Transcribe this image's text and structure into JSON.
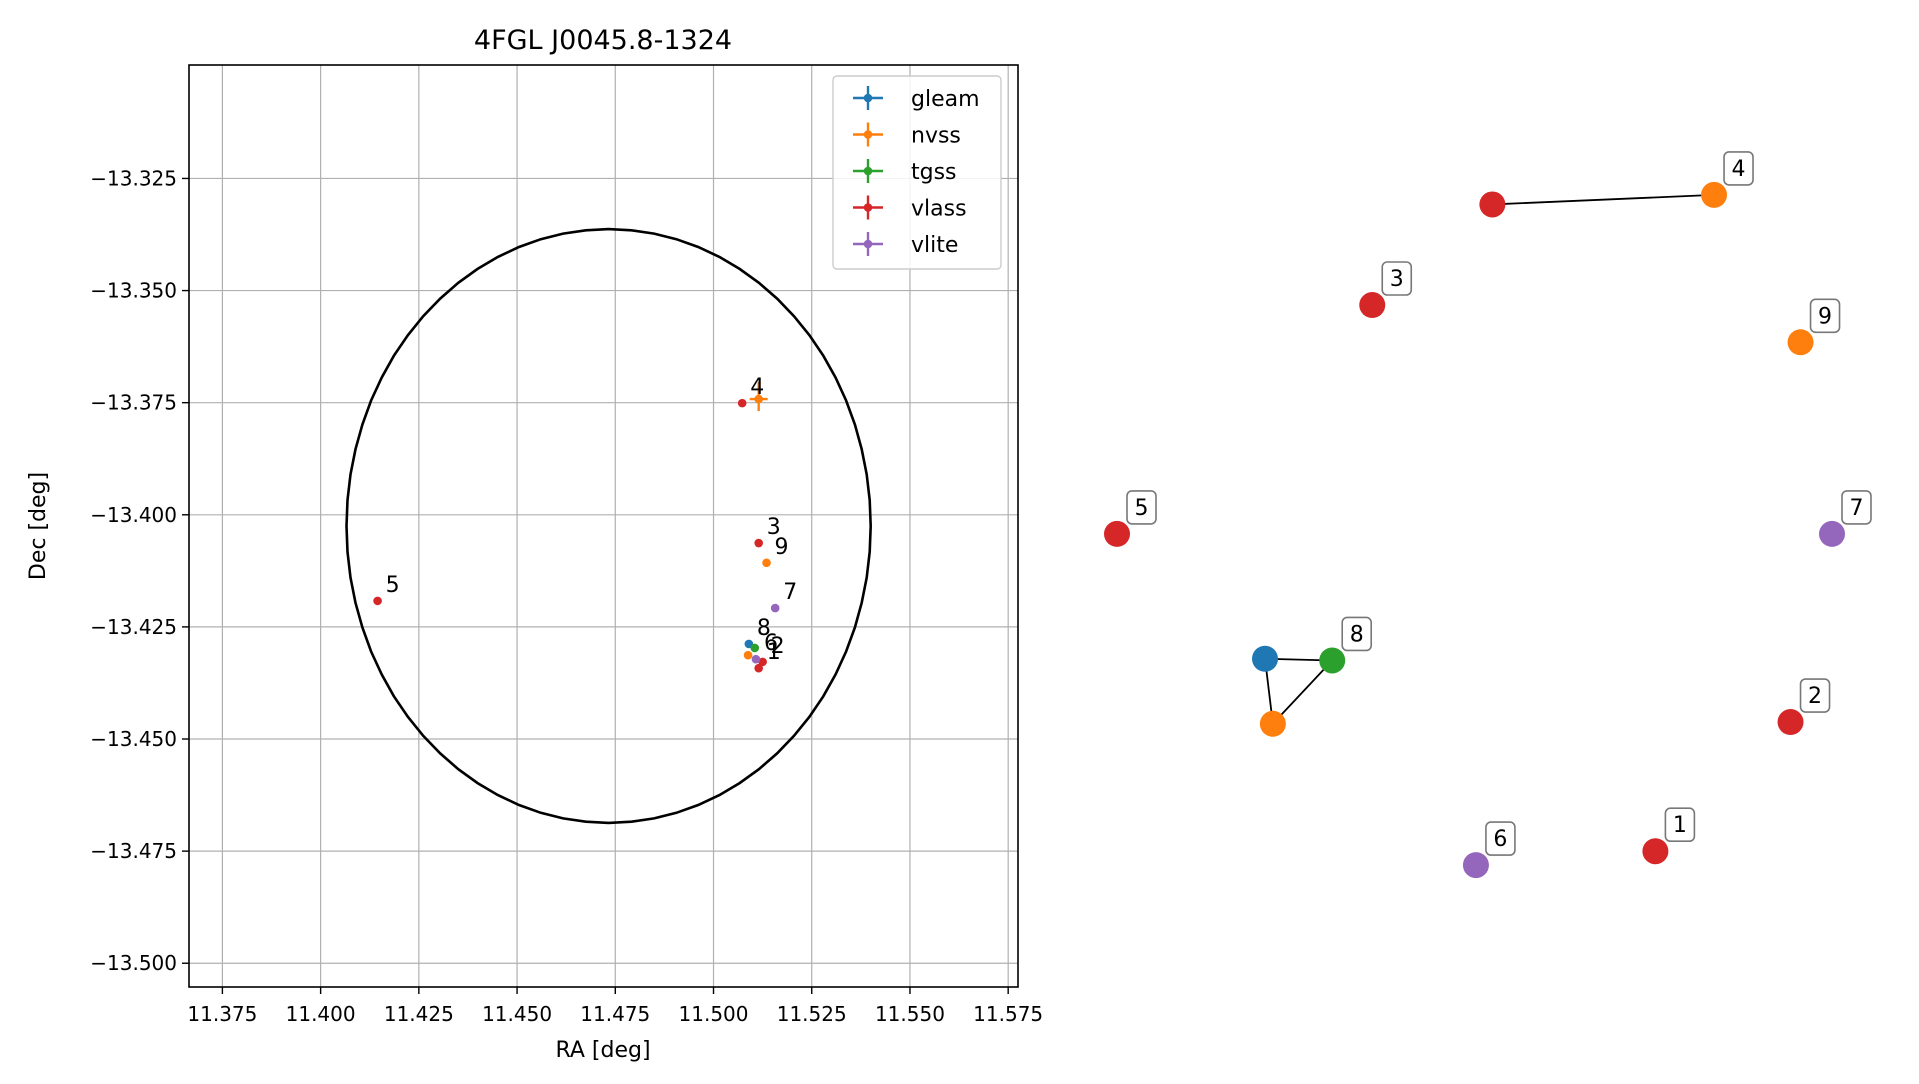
{
  "chart_data": [
    {
      "type": "scatter",
      "title": "4FGL J0045.8-1324",
      "xlabel": "RA [deg]",
      "ylabel": "Dec [deg]",
      "xlim": [
        11.3665,
        11.5775
      ],
      "ylim": [
        -13.5053,
        -13.2997
      ],
      "xticks": [
        "11.375",
        "11.400",
        "11.425",
        "11.450",
        "11.475",
        "11.500",
        "11.525",
        "11.550",
        "11.575"
      ],
      "xtick_values": [
        11.375,
        11.4,
        11.425,
        11.45,
        11.475,
        11.5,
        11.525,
        11.55,
        11.575
      ],
      "yticks": [
        "−13.325",
        "−13.350",
        "−13.375",
        "−13.400",
        "−13.425",
        "−13.450",
        "−13.475",
        "−13.500"
      ],
      "ytick_values": [
        -13.325,
        -13.35,
        -13.375,
        -13.4,
        -13.425,
        -13.45,
        -13.475,
        -13.5
      ],
      "grid": true,
      "legend_position": "top-right",
      "ellipse": {
        "center_ra": 11.4733,
        "center_dec": -13.4025,
        "semi_major_ra": 0.0667,
        "semi_minor_dec": 0.0662,
        "color": "#000000"
      },
      "series": [
        {
          "name": "gleam",
          "color": "#1f77b4",
          "points": [
            {
              "ra": 11.509,
              "dec": -13.4288,
              "label": ""
            }
          ]
        },
        {
          "name": "nvss",
          "color": "#ff7f0e",
          "points": [
            {
              "ra": 11.5115,
              "dec": -13.3742,
              "label": "",
              "error": true
            },
            {
              "ra": 11.5135,
              "dec": -13.4107,
              "label": ""
            },
            {
              "ra": 11.5088,
              "dec": -13.4313,
              "label": ""
            }
          ]
        },
        {
          "name": "tgss",
          "color": "#2ca02c",
          "points": [
            {
              "ra": 11.5105,
              "dec": -13.4297,
              "label": ""
            }
          ]
        },
        {
          "name": "vlass",
          "color": "#d62728",
          "points": [
            {
              "ra": 11.5073,
              "dec": -13.3751,
              "label": "4"
            },
            {
              "ra": 11.5115,
              "dec": -13.4063,
              "label": "3"
            },
            {
              "ra": 11.4145,
              "dec": -13.4192,
              "label": "5"
            },
            {
              "ra": 11.5125,
              "dec": -13.4328,
              "label": "2"
            },
            {
              "ra": 11.5115,
              "dec": -13.4342,
              "label": "1"
            }
          ]
        },
        {
          "name": "vlite",
          "color": "#9467bd",
          "points": [
            {
              "ra": 11.5157,
              "dec": -13.4208,
              "label": "7"
            },
            {
              "ra": 11.5108,
              "dec": -13.4322,
              "label": "6"
            }
          ]
        }
      ],
      "extra_labels": [
        {
          "text": "9",
          "ra": 11.5135,
          "dec": -13.4107
        },
        {
          "text": "8",
          "ra": 11.509,
          "dec": -13.4288
        }
      ]
    },
    {
      "type": "network",
      "nodes": [
        {
          "id": "4",
          "color": "#ff7f0e",
          "label": "4",
          "labeled": true,
          "x": 0.835,
          "y": 0.106
        },
        {
          "id": "4v",
          "color": "#d62728",
          "label": "",
          "labeled": false,
          "x": 0.525,
          "y": 0.117
        },
        {
          "id": "3",
          "color": "#d62728",
          "label": "3",
          "labeled": true,
          "x": 0.357,
          "y": 0.233
        },
        {
          "id": "9",
          "color": "#ff7f0e",
          "label": "9",
          "labeled": true,
          "x": 0.956,
          "y": 0.276
        },
        {
          "id": "5",
          "color": "#d62728",
          "label": "5",
          "labeled": true,
          "x": 0.0,
          "y": 0.497
        },
        {
          "id": "7",
          "color": "#9467bd",
          "label": "7",
          "labeled": true,
          "x": 1.0,
          "y": 0.497
        },
        {
          "id": "8g",
          "color": "#1f77b4",
          "label": "",
          "labeled": false,
          "x": 0.207,
          "y": 0.641
        },
        {
          "id": "8",
          "color": "#2ca02c",
          "label": "8",
          "labeled": true,
          "x": 0.301,
          "y": 0.643
        },
        {
          "id": "8n",
          "color": "#ff7f0e",
          "label": "",
          "labeled": false,
          "x": 0.218,
          "y": 0.716
        },
        {
          "id": "2",
          "color": "#d62728",
          "label": "2",
          "labeled": true,
          "x": 0.942,
          "y": 0.714
        },
        {
          "id": "1",
          "color": "#d62728",
          "label": "1",
          "labeled": true,
          "x": 0.753,
          "y": 0.863
        },
        {
          "id": "6",
          "color": "#9467bd",
          "label": "6",
          "labeled": true,
          "x": 0.502,
          "y": 0.879
        }
      ],
      "edges": [
        [
          "4v",
          "4"
        ],
        [
          "8g",
          "8"
        ],
        [
          "8g",
          "8n"
        ],
        [
          "8n",
          "8"
        ]
      ]
    }
  ]
}
